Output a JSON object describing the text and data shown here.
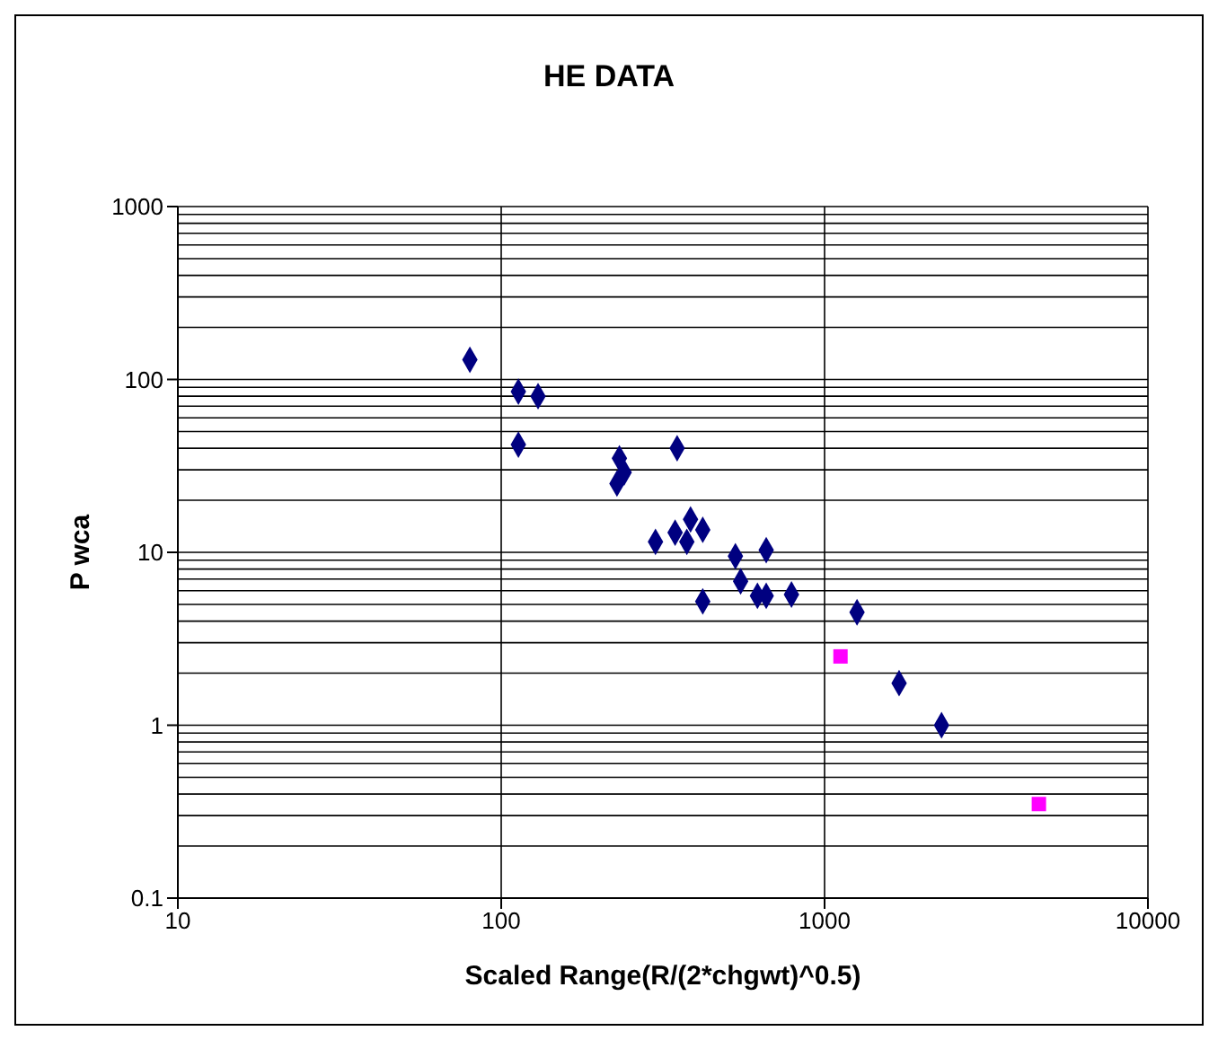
{
  "chart_data": {
    "type": "scatter",
    "title": "HE DATA",
    "xlabel": "Scaled Range(R/(2*chgwt)^0.5)",
    "ylabel": "P wca",
    "log": "xy",
    "grid": true,
    "legend": false,
    "xlim": [
      10,
      10000
    ],
    "xticks": [
      10,
      100,
      1000,
      10000
    ],
    "ylim": [
      0.1,
      1000
    ],
    "yticks": [
      0.1,
      1,
      10,
      100,
      1000
    ],
    "series": [
      {
        "color": "#000080",
        "marker": "diamond",
        "x": [
          80,
          113,
          130,
          113,
          232,
          240,
          228,
          350,
          300,
          345,
          385,
          375,
          420,
          420,
          530,
          550,
          660,
          620,
          660,
          790,
          1260,
          1700,
          2300
        ],
        "values": [
          130,
          85,
          80,
          42,
          35,
          29,
          25,
          40,
          11.5,
          13,
          15.5,
          11.5,
          13.5,
          5.2,
          9.5,
          6.8,
          10.3,
          5.6,
          5.6,
          5.7,
          4.5,
          1.75,
          1.0
        ]
      },
      {
        "color": "#ff00ff",
        "marker": "square",
        "x": [
          1120,
          4600
        ],
        "values": [
          2.5,
          0.35
        ]
      }
    ]
  }
}
